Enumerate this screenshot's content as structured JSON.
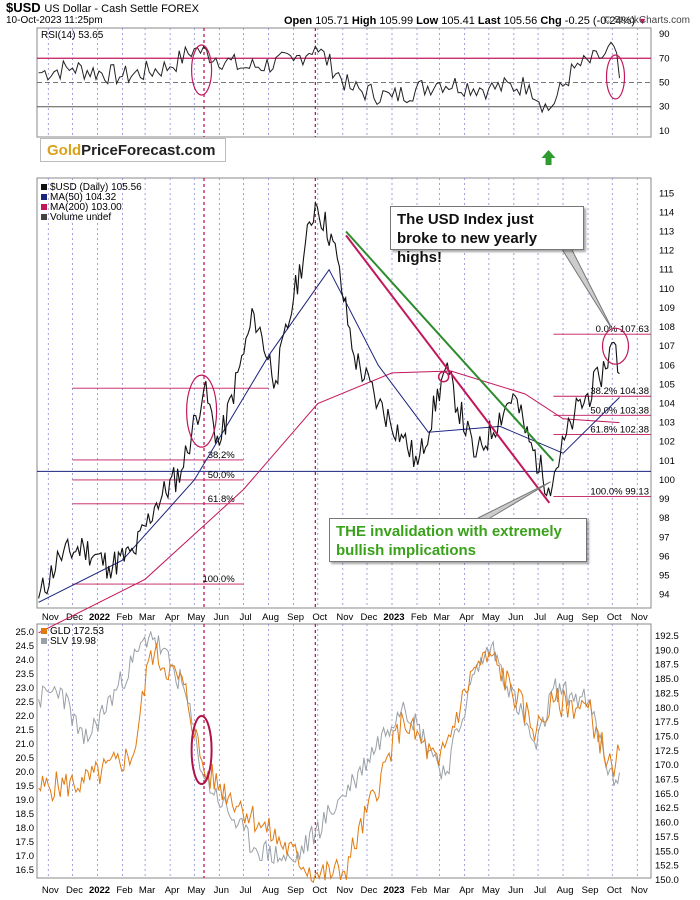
{
  "header": {
    "symbol": "$USD",
    "name": "US Dollar - Cash Settle FOREX",
    "datetime": "10-Oct-2023 11:25pm",
    "open_label": "Open",
    "open": "105.71",
    "high_label": "High",
    "high": "105.99",
    "low_label": "Low",
    "low": "105.41",
    "last_label": "Last",
    "last": "105.56",
    "chg_label": "Chg",
    "chg": "-0.25 (-0.24%)",
    "source": "© StockCharts.com"
  },
  "logo": {
    "part1": "Gold",
    "part2": "PriceForecast.com"
  },
  "annotations": {
    "callout_top": "The USD Index just broke to new yearly highs!",
    "callout_bottom": "THE invalidation with extremely bullish implications"
  },
  "chart_data": [
    {
      "type": "line",
      "panel": "RSI",
      "legend": "RSI(14) 53.65",
      "y_ticks": [
        90,
        70,
        50,
        30,
        10
      ],
      "levels": [
        70,
        50,
        30
      ],
      "colors": {
        "line": "#222222",
        "overbought_line": "#c2185b"
      },
      "x": [
        "2021-10-20",
        "2021-12-01",
        "2022-02-01",
        "2022-04-01",
        "2022-05-01",
        "2022-07-01",
        "2022-09-01",
        "2022-09-28",
        "2022-11-10",
        "2023-01-01",
        "2023-03-01",
        "2023-05-01",
        "2023-06-20",
        "2023-07-14",
        "2023-08-15",
        "2023-09-15",
        "2023-10-03",
        "2023-10-10"
      ],
      "values": [
        58,
        62,
        55,
        63,
        78,
        62,
        68,
        80,
        45,
        38,
        50,
        45,
        48,
        27,
        62,
        70,
        80,
        53.65
      ]
    },
    {
      "type": "line",
      "panel": "USD Index",
      "legend": [
        "$USD (Daily) 105.56",
        "MA(50) 104.32",
        "MA(200) 103.00",
        "Volume undef"
      ],
      "y_ticks": [
        94,
        95,
        96,
        97,
        98,
        99,
        100,
        101,
        102,
        103,
        104,
        105,
        106,
        107,
        108,
        109,
        110,
        111,
        112,
        113,
        114,
        115
      ],
      "ylim": [
        93.3,
        115.8
      ],
      "colors": {
        "price": "#111111",
        "ma50": "#1a237e",
        "ma200": "#c2185b",
        "fib": "#c2185b",
        "green_trend": "#2e8b2e",
        "red_trend": "#c2185b",
        "support": "#1a237e"
      },
      "series": [
        {
          "name": "$USD",
          "x": [
            "2021-10-20",
            "2021-11-15",
            "2021-12-15",
            "2022-01-15",
            "2022-02-15",
            "2022-03-15",
            "2022-04-15",
            "2022-05-13",
            "2022-06-01",
            "2022-07-14",
            "2022-08-10",
            "2022-09-01",
            "2022-09-28",
            "2022-10-20",
            "2022-11-15",
            "2022-12-15",
            "2023-01-15",
            "2023-02-02",
            "2023-03-08",
            "2023-04-15",
            "2023-05-31",
            "2023-06-20",
            "2023-07-14",
            "2023-08-15",
            "2023-09-15",
            "2023-10-03",
            "2023-10-10"
          ],
          "values": [
            93.8,
            96.0,
            96.5,
            95.5,
            96.2,
            98.8,
            100.5,
            104.8,
            101.8,
            108.7,
            105.2,
            109.5,
            114.5,
            112.5,
            106.5,
            104.0,
            102.2,
            100.8,
            105.8,
            101.2,
            104.5,
            102.0,
            99.6,
            103.4,
            105.3,
            107.2,
            105.56
          ]
        },
        {
          "name": "MA(50)",
          "x": [
            "2021-10-20",
            "2022-02-01",
            "2022-05-01",
            "2022-08-01",
            "2022-10-15",
            "2022-12-15",
            "2023-02-15",
            "2023-05-15",
            "2023-08-01",
            "2023-10-10"
          ],
          "values": [
            93.6,
            95.8,
            100.0,
            106.5,
            111.0,
            106.0,
            102.5,
            102.8,
            101.4,
            104.32
          ]
        },
        {
          "name": "MA(200)",
          "x": [
            "2021-10-20",
            "2022-03-01",
            "2022-07-01",
            "2022-10-01",
            "2023-01-01",
            "2023-03-15",
            "2023-06-15",
            "2023-08-01",
            "2023-10-10"
          ],
          "values": [
            92.0,
            94.8,
            99.5,
            104.0,
            105.6,
            105.7,
            104.5,
            103.2,
            103.0
          ]
        }
      ],
      "fib_2022": [
        {
          "label": "38.2%",
          "value": 101.05
        },
        {
          "label": "50.0%",
          "value": 100.0
        },
        {
          "label": "61.8%",
          "value": 98.75
        },
        {
          "label": "100.0%",
          "value": 94.55
        }
      ],
      "fib_2023": [
        {
          "label": "0.0%",
          "value": 107.63,
          "text": "0.0% 107.63"
        },
        {
          "label": "38.2%",
          "value": 104.38,
          "text": "38.2% 104.38"
        },
        {
          "label": "50.0%",
          "value": 103.38,
          "text": "50.0% 103.38"
        },
        {
          "label": "61.8%",
          "value": 102.38,
          "text": "61.8% 102.38"
        },
        {
          "label": "100.0%",
          "value": 99.13,
          "text": "100.0% 99.13"
        }
      ],
      "support_level": 100.45
    },
    {
      "type": "line",
      "panel": "GLD / SLV",
      "legend": [
        "GLD 172.53",
        "SLV 19.98"
      ],
      "left_ticks": [
        16.5,
        17.0,
        17.5,
        18.0,
        18.5,
        19.0,
        19.5,
        20.0,
        20.5,
        21.0,
        21.5,
        22.0,
        22.5,
        23.0,
        23.5,
        24.0,
        24.5,
        25.0
      ],
      "right_ticks": [
        150.0,
        152.5,
        155.0,
        157.5,
        160.0,
        162.5,
        165.0,
        167.5,
        170.0,
        172.5,
        175.0,
        177.5,
        180.0,
        182.5,
        185.0,
        187.5,
        190.0,
        192.5
      ],
      "colors": {
        "GLD": "#e07a10",
        "SLV": "#9aa0a6",
        "circle": "#b0124a"
      },
      "series": [
        {
          "name": "GLD",
          "x": [
            "2021-10-20",
            "2021-12-15",
            "2022-02-15",
            "2022-03-08",
            "2022-04-18",
            "2022-05-13",
            "2022-07-20",
            "2022-09-28",
            "2022-11-03",
            "2023-01-15",
            "2023-02-28",
            "2023-04-13",
            "2023-05-04",
            "2023-06-29",
            "2023-07-20",
            "2023-09-01",
            "2023-10-03",
            "2023-10-10"
          ],
          "values": [
            166.0,
            167.0,
            172.0,
            190.0,
            184.0,
            169.0,
            160.0,
            151.0,
            151.5,
            178.0,
            170.0,
            187.0,
            189.0,
            176.0,
            181.0,
            180.0,
            168.0,
            172.53
          ]
        },
        {
          "name": "SLV",
          "x": [
            "2021-10-20",
            "2021-11-16",
            "2021-12-15",
            "2022-03-08",
            "2022-04-18",
            "2022-05-13",
            "2022-07-14",
            "2022-09-01",
            "2022-11-15",
            "2023-01-15",
            "2023-03-08",
            "2023-04-13",
            "2023-05-04",
            "2023-06-29",
            "2023-07-20",
            "2023-09-01",
            "2023-10-03",
            "2023-10-10"
          ],
          "values": [
            22.6,
            23.0,
            21.0,
            25.0,
            23.0,
            19.8,
            17.3,
            16.8,
            19.7,
            22.5,
            19.9,
            23.5,
            24.5,
            20.8,
            23.0,
            22.5,
            19.5,
            19.98
          ]
        }
      ]
    }
  ],
  "x_axis": {
    "ticks": [
      "Nov",
      "Dec",
      "2022",
      "Feb",
      "Mar",
      "Apr",
      "May",
      "Jun",
      "Jul",
      "Aug",
      "Sep",
      "Oct",
      "Nov",
      "Dec",
      "2023",
      "Feb",
      "Mar",
      "Apr",
      "May",
      "Jun",
      "Jul",
      "Aug",
      "Sep",
      "Oct",
      "Nov"
    ],
    "tick_dates": [
      "2021-11-01",
      "2021-12-01",
      "2022-01-01",
      "2022-02-01",
      "2022-03-01",
      "2022-04-01",
      "2022-05-01",
      "2022-06-01",
      "2022-07-01",
      "2022-08-01",
      "2022-09-01",
      "2022-10-01",
      "2022-11-01",
      "2022-12-01",
      "2023-01-01",
      "2023-02-01",
      "2023-03-01",
      "2023-04-01",
      "2023-05-01",
      "2023-06-01",
      "2023-07-01",
      "2023-08-01",
      "2023-09-01",
      "2023-10-01",
      "2023-11-01"
    ],
    "range": [
      "2021-10-18",
      "2023-11-18"
    ]
  }
}
